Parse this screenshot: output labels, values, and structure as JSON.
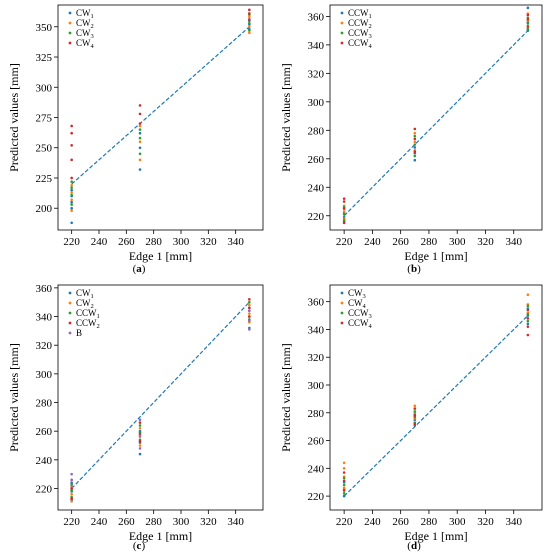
{
  "chart_data": [
    {
      "type": "scatter",
      "panel_label": "(a)",
      "title": "",
      "xlabel": "Edge 1 [mm]",
      "ylabel": "Predicted values [mm]",
      "xlim": [
        210,
        360
      ],
      "ylim": [
        182,
        368
      ],
      "xticks": [
        220,
        240,
        260,
        280,
        300,
        320,
        340
      ],
      "yticks": [
        200,
        225,
        250,
        275,
        300,
        325,
        350
      ],
      "legend_position": "top-left",
      "grid": false,
      "reference_line": {
        "x": [
          220,
          350
        ],
        "y": [
          220,
          350
        ],
        "color": "#1f77b4",
        "style": "dashed"
      },
      "series": [
        {
          "name": "CW",
          "sub": "1",
          "color": "#1f77b4",
          "points": [
            [
              220,
              188
            ],
            [
              220,
              200
            ],
            [
              220,
              205
            ],
            [
              220,
              210
            ],
            [
              220,
              215
            ],
            [
              270,
              232
            ],
            [
              270,
              250
            ],
            [
              270,
              262
            ],
            [
              350,
              348
            ],
            [
              350,
              352
            ],
            [
              350,
              355
            ]
          ]
        },
        {
          "name": "CW",
          "sub": "2",
          "color": "#ff7f0e",
          "points": [
            [
              220,
              198
            ],
            [
              220,
              207
            ],
            [
              220,
              213
            ],
            [
              220,
              219
            ],
            [
              270,
              240
            ],
            [
              270,
              255
            ],
            [
              270,
              268
            ],
            [
              350,
              345
            ],
            [
              350,
              350
            ],
            [
              350,
              358
            ]
          ]
        },
        {
          "name": "CW",
          "sub": "3",
          "color": "#2ca02c",
          "points": [
            [
              220,
              203
            ],
            [
              220,
              211
            ],
            [
              220,
              217
            ],
            [
              220,
              222
            ],
            [
              270,
              245
            ],
            [
              270,
              258
            ],
            [
              270,
              265
            ],
            [
              350,
              347
            ],
            [
              350,
              353
            ],
            [
              350,
              360
            ]
          ]
        },
        {
          "name": "CW",
          "sub": "4",
          "color": "#d62728",
          "points": [
            [
              220,
              225
            ],
            [
              220,
              240
            ],
            [
              220,
              252
            ],
            [
              220,
              262
            ],
            [
              220,
              268
            ],
            [
              270,
              270
            ],
            [
              270,
              278
            ],
            [
              270,
              285
            ],
            [
              350,
              356
            ],
            [
              350,
              361
            ],
            [
              350,
              364
            ]
          ]
        }
      ]
    },
    {
      "type": "scatter",
      "panel_label": "(b)",
      "title": "",
      "xlabel": "Edge 1 [mm]",
      "ylabel": "Predicted values [mm]",
      "xlim": [
        210,
        360
      ],
      "ylim": [
        210,
        368
      ],
      "xticks": [
        220,
        240,
        260,
        280,
        300,
        320,
        340
      ],
      "yticks": [
        220,
        240,
        260,
        280,
        300,
        320,
        340,
        360
      ],
      "legend_position": "top-left",
      "grid": false,
      "reference_line": {
        "x": [
          220,
          350
        ],
        "y": [
          220,
          350
        ],
        "color": "#1f77b4",
        "style": "dashed"
      },
      "series": [
        {
          "name": "CCW",
          "sub": "1",
          "color": "#1f77b4",
          "points": [
            [
              220,
              216
            ],
            [
              220,
              219
            ],
            [
              220,
              222
            ],
            [
              270,
              259
            ],
            [
              270,
              264
            ],
            [
              270,
              268
            ],
            [
              350,
              350
            ],
            [
              350,
              356
            ],
            [
              350,
              366
            ]
          ]
        },
        {
          "name": "CCW",
          "sub": "2",
          "color": "#ff7f0e",
          "points": [
            [
              220,
              218
            ],
            [
              220,
              223
            ],
            [
              220,
              227
            ],
            [
              270,
              266
            ],
            [
              270,
              272
            ],
            [
              270,
              278
            ],
            [
              350,
              352
            ],
            [
              350,
              357
            ],
            [
              350,
              362
            ]
          ]
        },
        {
          "name": "CCW",
          "sub": "3",
          "color": "#2ca02c",
          "points": [
            [
              220,
              217
            ],
            [
              220,
              221
            ],
            [
              220,
              226
            ],
            [
              270,
              262
            ],
            [
              270,
              270
            ],
            [
              270,
              276
            ],
            [
              350,
              351
            ],
            [
              350,
              355
            ],
            [
              350,
              359
            ]
          ]
        },
        {
          "name": "CCW",
          "sub": "4",
          "color": "#d62728",
          "points": [
            [
              220,
              215
            ],
            [
              220,
              225
            ],
            [
              220,
              230
            ],
            [
              220,
              232
            ],
            [
              270,
              265
            ],
            [
              270,
              274
            ],
            [
              270,
              281
            ],
            [
              350,
              353
            ],
            [
              350,
              358
            ],
            [
              350,
              361
            ]
          ]
        }
      ]
    },
    {
      "type": "scatter",
      "panel_label": "(c)",
      "title": "",
      "xlabel": "Edge 1 [mm]",
      "ylabel": "Predicted values [mm]",
      "xlim": [
        210,
        360
      ],
      "ylim": [
        205,
        362
      ],
      "xticks": [
        220,
        240,
        260,
        280,
        300,
        320,
        340
      ],
      "yticks": [
        220,
        240,
        260,
        280,
        300,
        320,
        340,
        360
      ],
      "legend_position": "top-left",
      "grid": false,
      "reference_line": {
        "x": [
          220,
          350
        ],
        "y": [
          220,
          350
        ],
        "color": "#1f77b4",
        "style": "dashed"
      },
      "series": [
        {
          "name": "CW",
          "sub": "1",
          "color": "#1f77b4",
          "points": [
            [
              220,
              212
            ],
            [
              220,
              218
            ],
            [
              220,
              224
            ],
            [
              270,
              244
            ],
            [
              270,
              252
            ],
            [
              270,
              260
            ],
            [
              350,
              332
            ],
            [
              350,
              340
            ],
            [
              350,
              346
            ]
          ]
        },
        {
          "name": "CW",
          "sub": "2",
          "color": "#ff7f0e",
          "points": [
            [
              220,
              211
            ],
            [
              220,
              216
            ],
            [
              220,
              221
            ],
            [
              270,
              250
            ],
            [
              270,
              256
            ],
            [
              270,
              262
            ],
            [
              350,
              336
            ],
            [
              350,
              342
            ],
            [
              350,
              348
            ]
          ]
        },
        {
          "name": "CCW",
          "sub": "1",
          "color": "#2ca02c",
          "points": [
            [
              220,
              214
            ],
            [
              220,
              219
            ],
            [
              220,
              223
            ],
            [
              270,
              254
            ],
            [
              270,
              259
            ],
            [
              270,
              264
            ],
            [
              350,
              338
            ],
            [
              350,
              344
            ],
            [
              350,
              350
            ]
          ]
        },
        {
          "name": "CCW",
          "sub": "2",
          "color": "#d62728",
          "points": [
            [
              220,
              213
            ],
            [
              220,
              220
            ],
            [
              220,
              226
            ],
            [
              270,
              253
            ],
            [
              270,
              258
            ],
            [
              270,
              266
            ],
            [
              350,
              340
            ],
            [
              350,
              346
            ],
            [
              350,
              352
            ]
          ]
        },
        {
          "name": "B",
          "sub": "",
          "color": "#9467bd",
          "points": [
            [
              220,
              222
            ],
            [
              220,
              226
            ],
            [
              220,
              230
            ],
            [
              270,
              248
            ],
            [
              270,
              257
            ],
            [
              270,
              268
            ],
            [
              350,
              331
            ],
            [
              350,
              337
            ],
            [
              350,
              344
            ]
          ]
        }
      ]
    },
    {
      "type": "scatter",
      "panel_label": "(d)",
      "title": "",
      "xlabel": "Edge 1 [mm]",
      "ylabel": "Predicted values [mm]",
      "xlim": [
        210,
        360
      ],
      "ylim": [
        210,
        372
      ],
      "xticks": [
        220,
        240,
        260,
        280,
        300,
        320,
        340
      ],
      "yticks": [
        220,
        240,
        260,
        280,
        300,
        320,
        340,
        360
      ],
      "legend_position": "top-left",
      "grid": false,
      "reference_line": {
        "x": [
          220,
          350
        ],
        "y": [
          220,
          350
        ],
        "color": "#1f77b4",
        "style": "dashed"
      },
      "series": [
        {
          "name": "CW",
          "sub": "3",
          "color": "#1f77b4",
          "points": [
            [
              220,
              220
            ],
            [
              220,
              225
            ],
            [
              220,
              230
            ],
            [
              270,
              271
            ],
            [
              270,
              275
            ],
            [
              270,
              279
            ],
            [
              350,
              344
            ],
            [
              350,
              350
            ],
            [
              350,
              355
            ]
          ]
        },
        {
          "name": "CW",
          "sub": "4",
          "color": "#ff7f0e",
          "points": [
            [
              220,
              226
            ],
            [
              220,
              234
            ],
            [
              220,
              240
            ],
            [
              220,
              244
            ],
            [
              270,
              276
            ],
            [
              270,
              280
            ],
            [
              270,
              285
            ],
            [
              350,
              352
            ],
            [
              350,
              358
            ],
            [
              350,
              365
            ]
          ]
        },
        {
          "name": "CCW",
          "sub": "3",
          "color": "#2ca02c",
          "points": [
            [
              220,
              222
            ],
            [
              220,
              228
            ],
            [
              220,
              233
            ],
            [
              270,
              273
            ],
            [
              270,
              277
            ],
            [
              270,
              281
            ],
            [
              350,
              346
            ],
            [
              350,
              351
            ],
            [
              350,
              357
            ]
          ]
        },
        {
          "name": "CCW",
          "sub": "4",
          "color": "#d62728",
          "points": [
            [
              220,
              224
            ],
            [
              220,
              231
            ],
            [
              220,
              237
            ],
            [
              270,
              272
            ],
            [
              270,
              278
            ],
            [
              270,
              283
            ],
            [
              350,
              336
            ],
            [
              350,
              342
            ],
            [
              350,
              348
            ],
            [
              350,
              354
            ]
          ]
        }
      ]
    }
  ]
}
